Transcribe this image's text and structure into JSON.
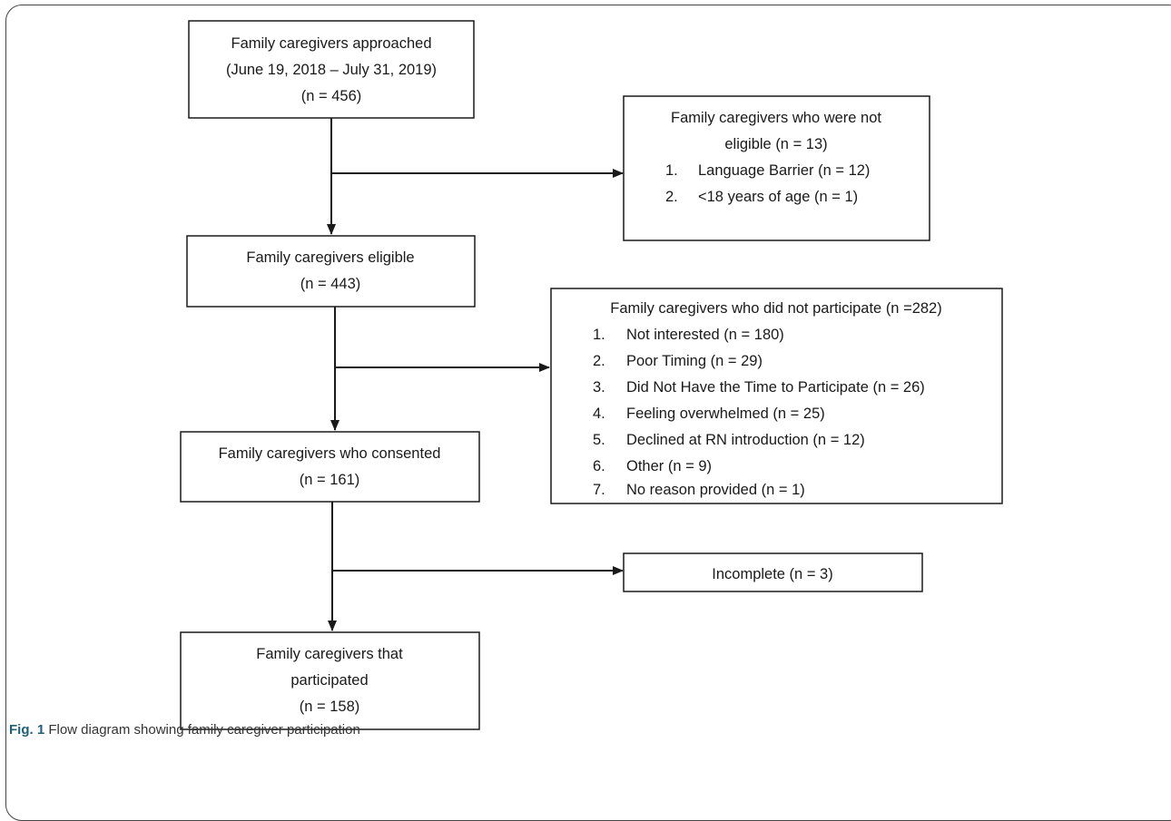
{
  "boxes": {
    "approached": {
      "lines": [
        "Family caregivers approached",
        "(June 19, 2018 – July 31, 2019)",
        "(n = 456)"
      ]
    },
    "not_eligible": {
      "lines": [
        "Family caregivers who were not",
        "eligible (n = 13)"
      ],
      "items": [
        {
          "num": "1.",
          "text": "Language Barrier (n = 12)"
        },
        {
          "num": "2.",
          "text": "<18 years of age (n = 1)"
        }
      ]
    },
    "eligible": {
      "lines": [
        "Family caregivers eligible",
        "(n = 443)"
      ]
    },
    "not_participate": {
      "lines": [
        "Family caregivers who did not participate (n =282)"
      ],
      "items": [
        {
          "num": "1.",
          "text": "Not interested (n = 180)"
        },
        {
          "num": "2.",
          "text": "Poor Timing (n = 29)"
        },
        {
          "num": "3.",
          "text": "Did Not Have the Time to Participate (n = 26)"
        },
        {
          "num": "4.",
          "text": "Feeling overwhelmed (n = 25)"
        },
        {
          "num": "5.",
          "text": "Declined at RN introduction (n = 12)"
        },
        {
          "num": "6.",
          "text": "Other (n = 9)"
        },
        {
          "num": "7.",
          "text": "No reason provided (n = 1)"
        }
      ]
    },
    "consented": {
      "lines": [
        "Family caregivers who consented",
        "(n = 161)"
      ]
    },
    "incomplete": {
      "lines": [
        "Incomplete (n = 3)"
      ]
    },
    "participated": {
      "lines": [
        "Family caregivers that",
        "participated",
        "(n = 158)"
      ]
    }
  },
  "caption": {
    "label": "Fig. 1",
    "text": "Flow diagram showing family caregiver participation"
  }
}
